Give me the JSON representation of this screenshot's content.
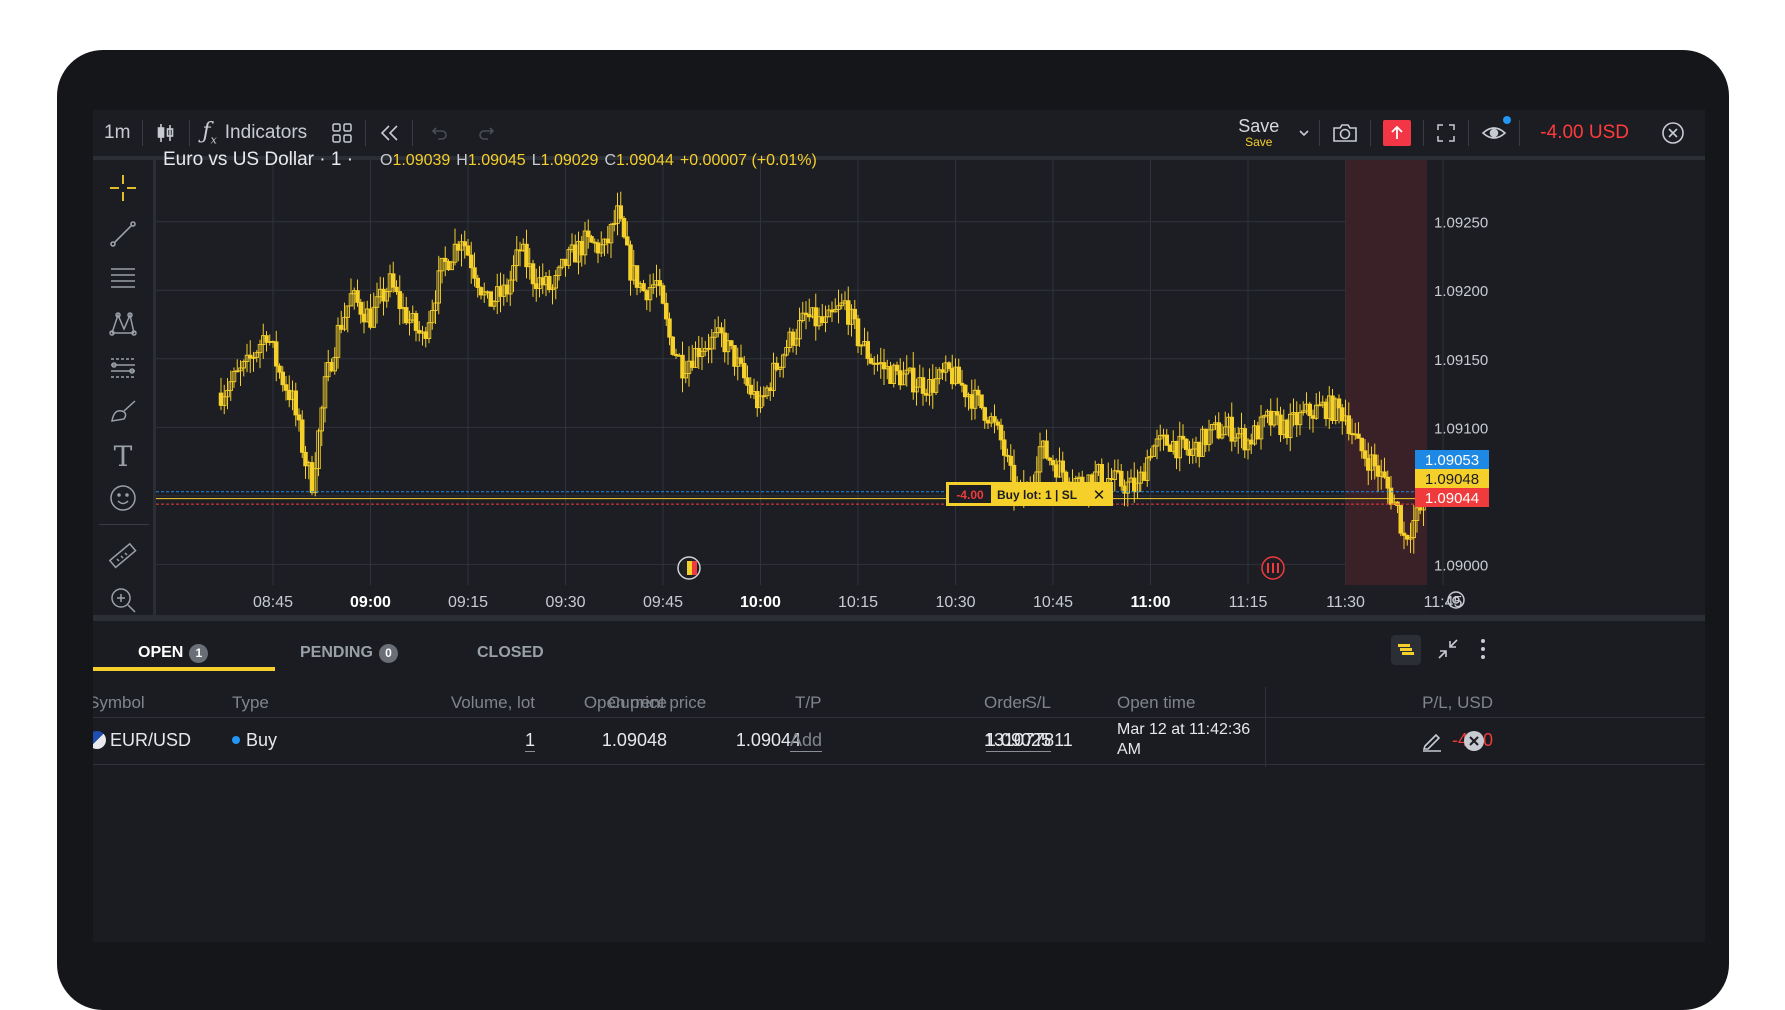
{
  "toolbar": {
    "interval": "1m",
    "indicators_label": "Indicators",
    "save_label": "Save",
    "save_sublabel": "Save",
    "pl_value": "-4.00 USD",
    "colors": {
      "pl": "#ff3b3b",
      "alert_button": "#f23645"
    }
  },
  "chart_header": {
    "symbol": "Euro vs US Dollar · 1 ·",
    "o_label": "O",
    "o_value": "1.09039",
    "h_label": "H",
    "h_value": "1.09045",
    "l_label": "L",
    "l_value": "1.09029",
    "c_label": "C",
    "c_value": "1.09044",
    "change": "+0.00007 (+0.01%)"
  },
  "price_labels": {
    "ask": "1.09053",
    "open": "1.09048",
    "bid": "1.09044"
  },
  "position_label": {
    "pl": "-4.00",
    "text": "Buy lot: 1 | SL",
    "close": "✕"
  },
  "chart_data": {
    "type": "candlestick",
    "title": "Euro vs US Dollar · 1 ·",
    "y_ticks": [
      "1.09250",
      "1.09200",
      "1.09150",
      "1.09100",
      "1.09000"
    ],
    "x_ticks": [
      "08:45",
      "09:00",
      "09:15",
      "09:30",
      "09:45",
      "10:00",
      "10:15",
      "10:30",
      "10:45",
      "11:00",
      "11:15",
      "11:30",
      "11:45"
    ],
    "x_bold_ticks": [
      "09:00",
      "10:00",
      "11:00"
    ],
    "ylim": [
      1.08985,
      1.09295
    ],
    "x_start": "08:37",
    "lines": {
      "ask": 1.09053,
      "open": 1.09048,
      "bid": 1.09044
    },
    "highlight_region": [
      "11:30",
      "11:42"
    ],
    "close_path": [
      {
        "t": "08:37",
        "v": 1.09125
      },
      {
        "t": "08:41",
        "v": 1.09145
      },
      {
        "t": "08:44",
        "v": 1.0917
      },
      {
        "t": "08:46",
        "v": 1.0914
      },
      {
        "t": "08:48",
        "v": 1.0912
      },
      {
        "t": "08:50",
        "v": 1.09075
      },
      {
        "t": "08:51",
        "v": 1.0906
      },
      {
        "t": "08:53",
        "v": 1.0913
      },
      {
        "t": "08:55",
        "v": 1.0917
      },
      {
        "t": "08:57",
        "v": 1.09195
      },
      {
        "t": "09:00",
        "v": 1.0918
      },
      {
        "t": "09:03",
        "v": 1.09205
      },
      {
        "t": "09:05",
        "v": 1.09185
      },
      {
        "t": "09:08",
        "v": 1.09165
      },
      {
        "t": "09:11",
        "v": 1.09215
      },
      {
        "t": "09:14",
        "v": 1.0924
      },
      {
        "t": "09:16",
        "v": 1.09215
      },
      {
        "t": "09:18",
        "v": 1.0919
      },
      {
        "t": "09:21",
        "v": 1.092
      },
      {
        "t": "09:23",
        "v": 1.0923
      },
      {
        "t": "09:25",
        "v": 1.0921
      },
      {
        "t": "09:28",
        "v": 1.092
      },
      {
        "t": "09:30",
        "v": 1.0922
      },
      {
        "t": "09:33",
        "v": 1.09235
      },
      {
        "t": "09:36",
        "v": 1.0923
      },
      {
        "t": "09:38",
        "v": 1.09255
      },
      {
        "t": "09:40",
        "v": 1.09215
      },
      {
        "t": "09:42",
        "v": 1.092
      },
      {
        "t": "09:44",
        "v": 1.09205
      },
      {
        "t": "09:46",
        "v": 1.09165
      },
      {
        "t": "09:48",
        "v": 1.09145
      },
      {
        "t": "09:51",
        "v": 1.0916
      },
      {
        "t": "09:54",
        "v": 1.09165
      },
      {
        "t": "09:56",
        "v": 1.0915
      },
      {
        "t": "09:58",
        "v": 1.0913
      },
      {
        "t": "10:00",
        "v": 1.09115
      },
      {
        "t": "10:02",
        "v": 1.0914
      },
      {
        "t": "10:04",
        "v": 1.0916
      },
      {
        "t": "10:07",
        "v": 1.0918
      },
      {
        "t": "10:10",
        "v": 1.09175
      },
      {
        "t": "10:13",
        "v": 1.0919
      },
      {
        "t": "10:15",
        "v": 1.09165
      },
      {
        "t": "10:17",
        "v": 1.0915
      },
      {
        "t": "10:20",
        "v": 1.0914
      },
      {
        "t": "10:23",
        "v": 1.09135
      },
      {
        "t": "10:26",
        "v": 1.0913
      },
      {
        "t": "10:29",
        "v": 1.0914
      },
      {
        "t": "10:32",
        "v": 1.09125
      },
      {
        "t": "10:35",
        "v": 1.0911
      },
      {
        "t": "10:37",
        "v": 1.0909
      },
      {
        "t": "10:39",
        "v": 1.09055
      },
      {
        "t": "10:41",
        "v": 1.0905
      },
      {
        "t": "10:43",
        "v": 1.09085
      },
      {
        "t": "10:46",
        "v": 1.0907
      },
      {
        "t": "10:49",
        "v": 1.0906
      },
      {
        "t": "10:52",
        "v": 1.09065
      },
      {
        "t": "10:55",
        "v": 1.0906
      },
      {
        "t": "10:58",
        "v": 1.09055
      },
      {
        "t": "11:00",
        "v": 1.09085
      },
      {
        "t": "11:03",
        "v": 1.0909
      },
      {
        "t": "11:06",
        "v": 1.0908
      },
      {
        "t": "11:09",
        "v": 1.09095
      },
      {
        "t": "11:12",
        "v": 1.091
      },
      {
        "t": "11:15",
        "v": 1.0909
      },
      {
        "t": "11:18",
        "v": 1.09105
      },
      {
        "t": "11:21",
        "v": 1.091
      },
      {
        "t": "11:24",
        "v": 1.0911
      },
      {
        "t": "11:27",
        "v": 1.09115
      },
      {
        "t": "11:30",
        "v": 1.0911
      },
      {
        "t": "11:32",
        "v": 1.09085
      },
      {
        "t": "11:34",
        "v": 1.09075
      },
      {
        "t": "11:36",
        "v": 1.0906
      },
      {
        "t": "11:38",
        "v": 1.0904
      },
      {
        "t": "11:39",
        "v": 1.0902
      },
      {
        "t": "11:41",
        "v": 1.09035
      },
      {
        "t": "11:42",
        "v": 1.09044
      }
    ],
    "colors": {
      "candle": "#f5cf2a",
      "background": "#1c1e24",
      "grid": "#30333b",
      "region": "#3a2127",
      "ask": "#1e88e5",
      "open": "#f5cf2a",
      "bid": "#ef3b3b"
    }
  },
  "orders_panel": {
    "tabs": [
      {
        "label": "OPEN",
        "count": "1"
      },
      {
        "label": "PENDING",
        "count": "0"
      },
      {
        "label": "CLOSED"
      }
    ],
    "columns": [
      "Symbol",
      "Type",
      "Volume, lot",
      "Open price",
      "Current price",
      "T/P",
      "S/L",
      "Order",
      "Open time",
      "P/L, USD"
    ],
    "rows": [
      {
        "symbol": "EUR/USD",
        "type": "Buy",
        "volume": "1",
        "open_price": "1.09048",
        "current_price": "1.09044",
        "tp": "Add",
        "sl": "1.09025",
        "order": "131077811",
        "open_time_1": "Mar 12 at 11:42:36",
        "open_time_2": "AM",
        "pl": "-4.00"
      }
    ]
  }
}
